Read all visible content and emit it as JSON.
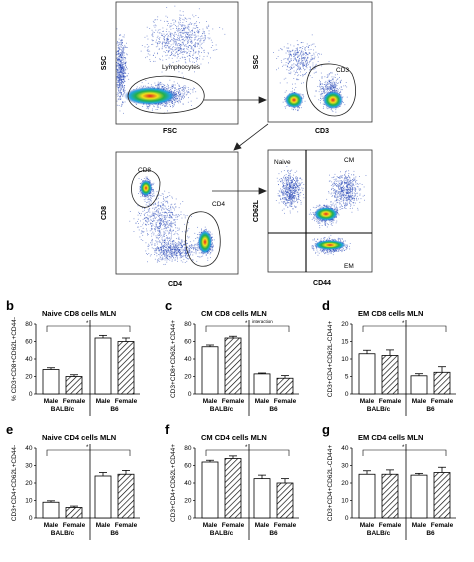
{
  "figure": {
    "panel_a_letter": "a",
    "facs": [
      {
        "name": "fsc-ssc",
        "xlabel": "FSC",
        "ylabel": "SSC",
        "gates": [
          "Lymphocytes"
        ]
      },
      {
        "name": "cd3-ssc",
        "xlabel": "CD3",
        "ylabel": "SSC",
        "gates": [
          "CD3"
        ]
      },
      {
        "name": "cd4-cd8",
        "xlabel": "CD4",
        "ylabel": "CD8",
        "gates": [
          "CD8",
          "CD4"
        ]
      },
      {
        "name": "cd44-cd62l",
        "xlabel": "CD44",
        "ylabel": "CD62L",
        "gates": [
          "Naive",
          "CM",
          "EM"
        ]
      }
    ],
    "colors": {
      "bar_fill": "#ffffff",
      "bar_stroke": "#000000",
      "dots": "#1f3fb5",
      "core_red": "#e02020",
      "core_yellow": "#f2e21b",
      "core_green": "#22b04a"
    }
  },
  "chart_data": [
    {
      "type": "bar",
      "letter": "b",
      "title": "Naive CD8 cells MLN",
      "ylabel": "% CD3+CD8+CD62L+CD44-",
      "categories": [
        "Male",
        "Female",
        "Male",
        "Female"
      ],
      "groups": [
        "BALB/c",
        "B6"
      ],
      "values": [
        28,
        20,
        64,
        60
      ],
      "errors": [
        2,
        2,
        3,
        4
      ],
      "ylim": [
        0,
        80
      ],
      "yticks": [
        0,
        20,
        40,
        60,
        80
      ],
      "hatched": [
        false,
        true,
        false,
        true
      ],
      "note": ""
    },
    {
      "type": "bar",
      "letter": "c",
      "title": "CM CD8 cells MLN",
      "ylabel": "CD3+CD8+CD62L+CD44+",
      "categories": [
        "Male",
        "Female",
        "Male",
        "Female"
      ],
      "groups": [
        "BALB/c",
        "B6"
      ],
      "values": [
        54,
        64,
        23,
        18
      ],
      "errors": [
        2,
        2,
        1,
        3
      ],
      "ylim": [
        0,
        80
      ],
      "yticks": [
        0,
        20,
        40,
        60,
        80
      ],
      "hatched": [
        false,
        true,
        false,
        true
      ],
      "note": "interaction"
    },
    {
      "type": "bar",
      "letter": "d",
      "title": "EM CD8 cells MLN",
      "ylabel": "CD3+CD4+CD62L-CD44+",
      "categories": [
        "Male",
        "Female",
        "Male",
        "Female"
      ],
      "groups": [
        "BALB/c",
        "B6"
      ],
      "values": [
        11.5,
        11,
        5.2,
        6.2
      ],
      "errors": [
        1,
        1.6,
        0.6,
        1.6
      ],
      "ylim": [
        0,
        20
      ],
      "yticks": [
        0,
        5,
        10,
        15,
        20
      ],
      "hatched": [
        false,
        true,
        false,
        true
      ],
      "note": ""
    },
    {
      "type": "bar",
      "letter": "e",
      "title": "Naive CD4 cells MLN",
      "ylabel": "CD3+CD4+CD62L+CD44-",
      "categories": [
        "Male",
        "Female",
        "Male",
        "Female"
      ],
      "groups": [
        "BALB/c",
        "B6"
      ],
      "values": [
        9,
        6,
        24,
        25
      ],
      "errors": [
        0.8,
        0.8,
        2,
        2.2
      ],
      "ylim": [
        0,
        40
      ],
      "yticks": [
        0,
        10,
        20,
        30,
        40
      ],
      "hatched": [
        false,
        true,
        false,
        true
      ],
      "note": ""
    },
    {
      "type": "bar",
      "letter": "f",
      "title": "CM CD4 cells MLN",
      "ylabel": "CD3+CD4+CD62L+CD44+",
      "categories": [
        "Male",
        "Female",
        "Male",
        "Female"
      ],
      "groups": [
        "BALB/c",
        "B6"
      ],
      "values": [
        64,
        68,
        45,
        40
      ],
      "errors": [
        2,
        3,
        4,
        5
      ],
      "ylim": [
        0,
        80
      ],
      "yticks": [
        0,
        20,
        40,
        60,
        80
      ],
      "hatched": [
        false,
        true,
        false,
        true
      ],
      "note": ""
    },
    {
      "type": "bar",
      "letter": "g",
      "title": "EM CD4 cells MLN",
      "ylabel": "CD3+CD4+CD62L-CD44+",
      "categories": [
        "Male",
        "Female",
        "Male",
        "Female"
      ],
      "groups": [
        "BALB/c",
        "B6"
      ],
      "values": [
        25,
        25,
        24.5,
        26
      ],
      "errors": [
        2,
        2.5,
        1,
        3
      ],
      "ylim": [
        0,
        40
      ],
      "yticks": [
        0,
        10,
        20,
        30,
        40
      ],
      "hatched": [
        false,
        true,
        false,
        true
      ],
      "note": ""
    }
  ]
}
